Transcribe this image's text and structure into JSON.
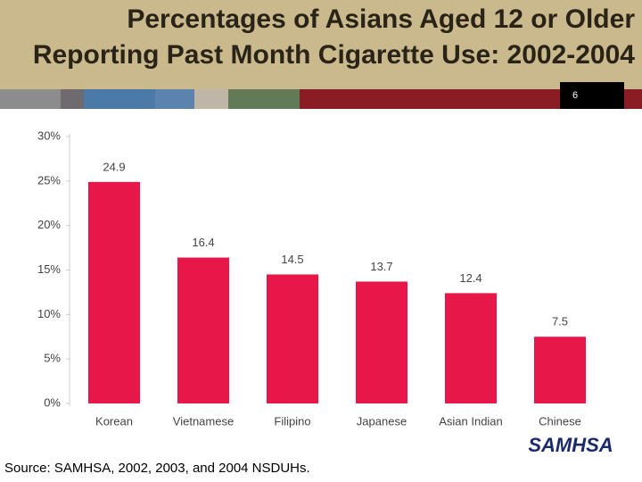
{
  "title": "Percentages of Asians Aged 12 or Older Reporting Past Month Cigarette Use: 2002-2004",
  "slide_number": "6",
  "source": "Source: SAMHSA, 2002, 2003, and 2004 NSDUHs.",
  "logo": "SAMHSA",
  "chart_data": {
    "type": "bar",
    "categories": [
      "Korean",
      "Vietnamese",
      "Filipino",
      "Japanese",
      "Asian Indian",
      "Chinese"
    ],
    "values": [
      24.9,
      16.4,
      14.5,
      13.7,
      12.4,
      7.5
    ],
    "color": "#e8174a",
    "ylim": [
      0,
      30
    ],
    "yticks": [
      {
        "value": 0,
        "label": "0%"
      },
      {
        "value": 5,
        "label": "5%"
      },
      {
        "value": 10,
        "label": "10%"
      },
      {
        "value": 15,
        "label": "15%"
      },
      {
        "value": 20,
        "label": "20%"
      },
      {
        "value": 25,
        "label": "25%"
      },
      {
        "value": 30,
        "label": "30%"
      }
    ],
    "grid": false
  }
}
